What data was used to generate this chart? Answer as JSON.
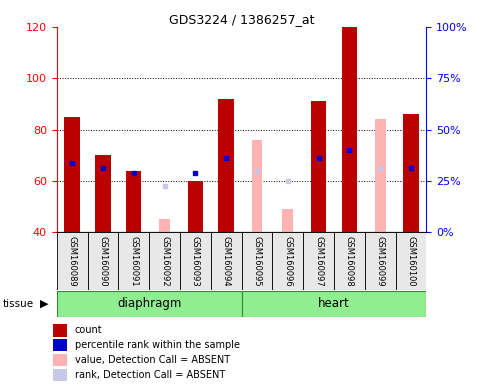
{
  "title": "GDS3224 / 1386257_at",
  "samples": [
    "GSM160089",
    "GSM160090",
    "GSM160091",
    "GSM160092",
    "GSM160093",
    "GSM160094",
    "GSM160095",
    "GSM160096",
    "GSM160097",
    "GSM160098",
    "GSM160099",
    "GSM160100"
  ],
  "count_values": [
    85,
    70,
    64,
    null,
    60,
    92,
    null,
    null,
    91,
    120,
    null,
    86
  ],
  "rank_values": [
    67,
    65,
    63,
    null,
    63,
    69,
    null,
    null,
    69,
    72,
    null,
    65
  ],
  "absent_value_values": [
    null,
    null,
    null,
    45,
    null,
    null,
    76,
    49,
    null,
    null,
    84,
    null
  ],
  "absent_rank_values": [
    null,
    null,
    null,
    58,
    null,
    null,
    64,
    60,
    null,
    null,
    65,
    null
  ],
  "ylim_left": [
    40,
    120
  ],
  "ylim_right": [
    0,
    100
  ],
  "yticks_left": [
    40,
    60,
    80,
    100,
    120
  ],
  "yticks_right": [
    0,
    25,
    50,
    75,
    100
  ],
  "yticklabels_right": [
    "0%",
    "25%",
    "50%",
    "75%",
    "100%"
  ],
  "bar_width": 0.5,
  "count_color": "#bb0000",
  "rank_color": "#0000cc",
  "absent_value_color": "#ffb3b3",
  "absent_rank_color": "#c8c8e8",
  "tissue_color": "#90ee90",
  "bg_color": "#e8e8e8",
  "group_boundaries": [
    {
      "label": "diaphragm",
      "start": 0,
      "end": 5
    },
    {
      "label": "heart",
      "start": 6,
      "end": 11
    }
  ],
  "legend_items": [
    {
      "label": "count",
      "color": "#bb0000"
    },
    {
      "label": "percentile rank within the sample",
      "color": "#0000cc"
    },
    {
      "label": "value, Detection Call = ABSENT",
      "color": "#ffb3b3"
    },
    {
      "label": "rank, Detection Call = ABSENT",
      "color": "#c8c8e8"
    }
  ]
}
